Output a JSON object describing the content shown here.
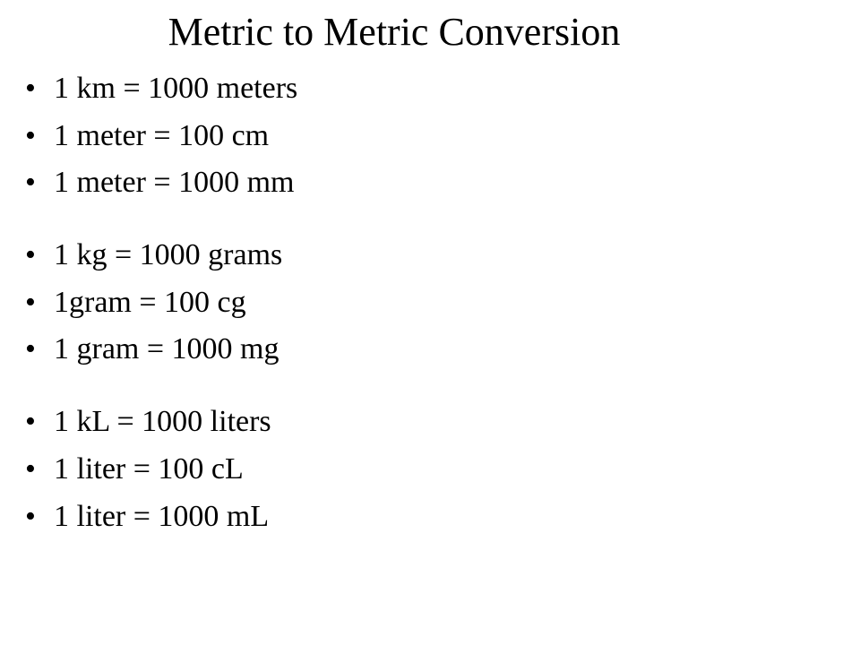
{
  "title": "Metric to Metric Conversion",
  "groups": [
    {
      "items": [
        "1 km =  1000 meters",
        "1 meter = 100 cm",
        "1 meter = 1000 mm"
      ]
    },
    {
      "items": [
        "1 kg =  1000 grams",
        "1gram  = 100 cg",
        "1 gram  = 1000 mg"
      ]
    },
    {
      "items": [
        "1 kL =  1000 liters",
        "1 liter = 100 cL",
        "1 liter = 1000 mL"
      ]
    }
  ],
  "bullet_char": "•",
  "colors": {
    "background": "#ffffff",
    "text": "#000000"
  },
  "typography": {
    "title_fontsize": 44,
    "item_fontsize": 34,
    "font_family": "Times New Roman"
  }
}
